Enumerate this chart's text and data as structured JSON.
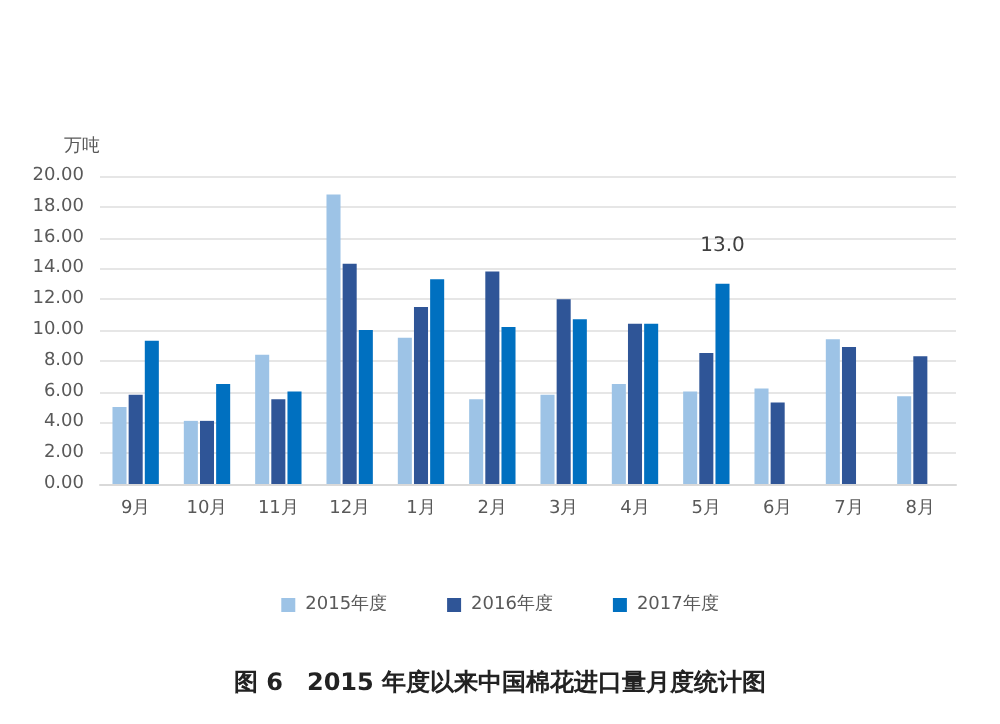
{
  "chart_data": {
    "type": "bar",
    "title": "图 6　2015 年度以来中国棉花进口量月度统计图",
    "ylabel": "万吨",
    "categories": [
      "9月",
      "10月",
      "11月",
      "12月",
      "1月",
      "2月",
      "3月",
      "4月",
      "5月",
      "6月",
      "7月",
      "8月"
    ],
    "series": [
      {
        "name": "2015年度",
        "color": "#9dc3e6",
        "values": [
          5.0,
          4.1,
          8.4,
          18.8,
          9.5,
          5.5,
          5.8,
          6.5,
          6.0,
          6.2,
          9.4,
          5.7
        ]
      },
      {
        "name": "2016年度",
        "color": "#2f5597",
        "values": [
          5.8,
          4.1,
          5.5,
          14.3,
          11.5,
          13.8,
          12.0,
          10.4,
          8.5,
          5.3,
          8.9,
          8.3
        ]
      },
      {
        "name": "2017年度",
        "color": "#0070c0",
        "values": [
          9.3,
          6.5,
          6.0,
          10.0,
          13.3,
          10.2,
          10.7,
          10.4,
          13.0,
          null,
          null,
          null
        ],
        "value_labels": [
          null,
          null,
          null,
          null,
          null,
          null,
          null,
          null,
          "13.0",
          null,
          null,
          null
        ]
      }
    ],
    "ylim": [
      0,
      20
    ],
    "yticks": [
      {
        "value": 0,
        "label": "0.00"
      },
      {
        "value": 2,
        "label": "2.00"
      },
      {
        "value": 4,
        "label": "4.00"
      },
      {
        "value": 6,
        "label": "6.00"
      },
      {
        "value": 8,
        "label": "8.00"
      },
      {
        "value": 10,
        "label": "10.00"
      },
      {
        "value": 12,
        "label": "12.00"
      },
      {
        "value": 14,
        "label": "14.00"
      },
      {
        "value": 16,
        "label": "16.00"
      },
      {
        "value": 18,
        "label": "18.00"
      },
      {
        "value": 20,
        "label": "20.00"
      }
    ],
    "grid": "y",
    "legend": "bottom"
  }
}
